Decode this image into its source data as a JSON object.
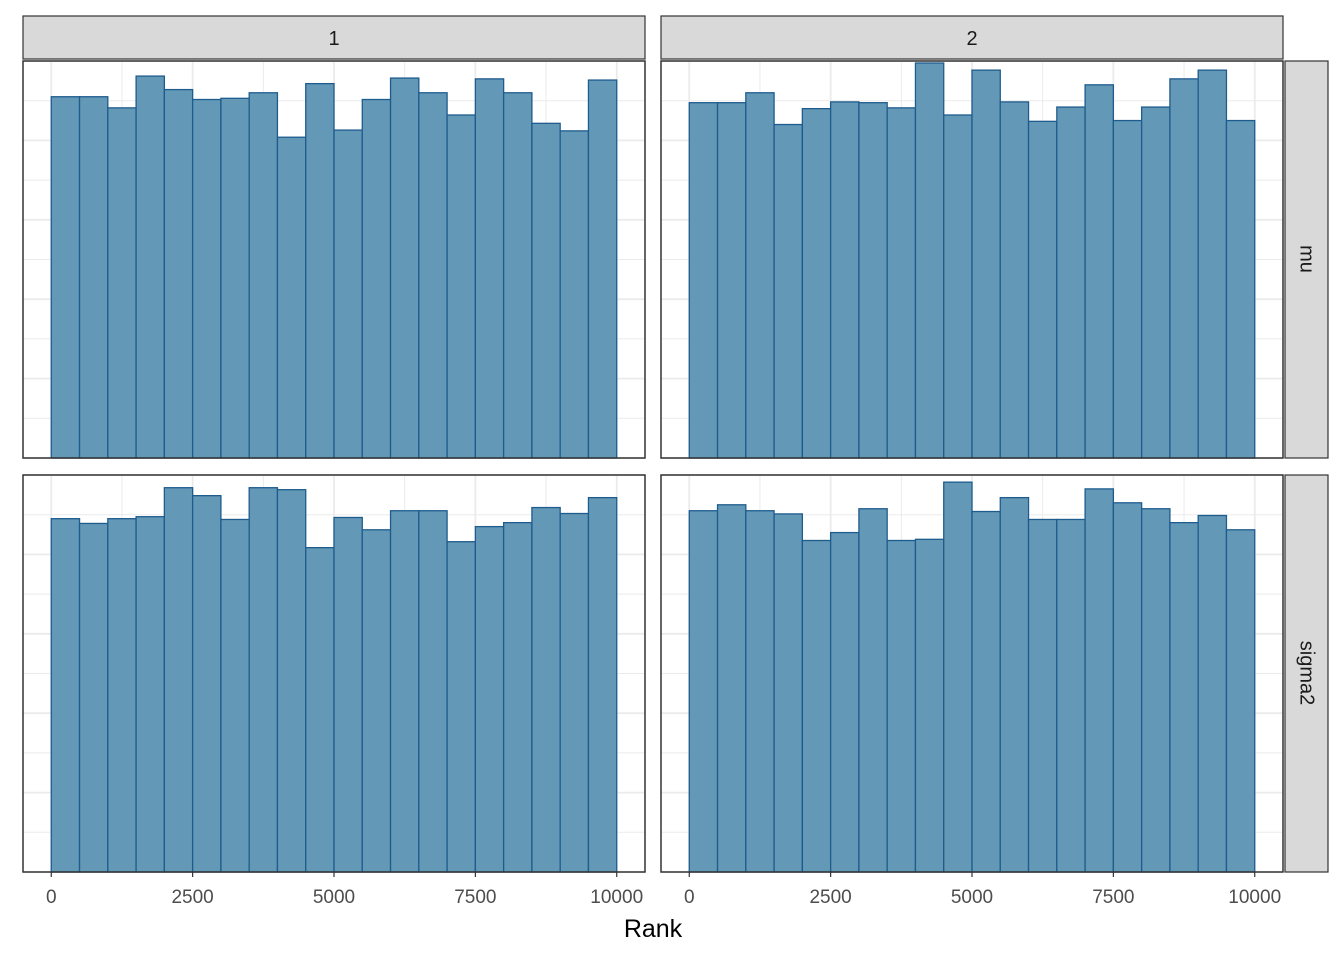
{
  "chart_data": {
    "type": "bar",
    "subtype": "faceted-histogram",
    "xlabel": "Rank",
    "ylabel": "",
    "xlim": [
      -500,
      10500
    ],
    "ylim": [
      0,
      1.0
    ],
    "x_ticks": [
      0,
      2500,
      5000,
      7500,
      10000
    ],
    "x_tick_labels": [
      "0",
      "2500",
      "5000",
      "7500",
      "10000"
    ],
    "bin_width": 500,
    "bin_starts": [
      0,
      500,
      1000,
      1500,
      2000,
      2500,
      3000,
      3500,
      4000,
      4500,
      5000,
      5500,
      6000,
      6500,
      7000,
      7500,
      8000,
      8500,
      9000,
      9500
    ],
    "grid": true,
    "legend": "none",
    "col_facets": [
      "1",
      "2"
    ],
    "row_facets": [
      "mu",
      "sigma2"
    ],
    "colors": {
      "bar_fill": "#6398b6",
      "bar_stroke": "#1f5c8e",
      "strip_fill": "#d9d9d9",
      "grid": "#ebebeb",
      "panel_border": "#333333"
    },
    "panels": [
      {
        "col": "1",
        "row": "mu",
        "values": [
          0.91,
          0.91,
          0.882,
          0.962,
          0.928,
          0.903,
          0.906,
          0.92,
          0.808,
          0.943,
          0.826,
          0.903,
          0.957,
          0.92,
          0.864,
          0.955,
          0.92,
          0.843,
          0.824,
          0.952
        ]
      },
      {
        "col": "2",
        "row": "mu",
        "values": [
          0.895,
          0.895,
          0.92,
          0.84,
          0.88,
          0.897,
          0.895,
          0.882,
          0.995,
          0.864,
          0.977,
          0.897,
          0.848,
          0.884,
          0.94,
          0.85,
          0.884,
          0.955,
          0.977,
          0.85
        ]
      },
      {
        "col": "1",
        "row": "sigma2",
        "values": [
          0.89,
          0.878,
          0.89,
          0.895,
          0.968,
          0.948,
          0.888,
          0.968,
          0.963,
          0.817,
          0.893,
          0.862,
          0.91,
          0.91,
          0.832,
          0.87,
          0.88,
          0.918,
          0.903,
          0.943
        ]
      },
      {
        "col": "2",
        "row": "sigma2",
        "values": [
          0.91,
          0.925,
          0.91,
          0.902,
          0.835,
          0.855,
          0.915,
          0.835,
          0.838,
          0.982,
          0.908,
          0.943,
          0.888,
          0.888,
          0.965,
          0.93,
          0.915,
          0.88,
          0.898,
          0.862
        ]
      }
    ]
  }
}
